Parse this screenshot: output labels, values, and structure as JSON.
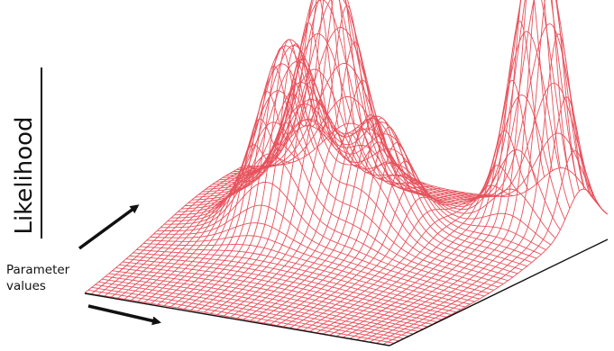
{
  "labels": {
    "y_axis": "Likelihood",
    "x_axis": "Parameter\nvalues"
  },
  "colors": {
    "mesh": "#e8505b",
    "floor_edge": "#111111",
    "axes": "#111111",
    "background": "#ffffff"
  },
  "surface": {
    "peak_count": 4,
    "relative_peak_heights": [
      0.87,
      0.78,
      0.6,
      1.0
    ]
  }
}
